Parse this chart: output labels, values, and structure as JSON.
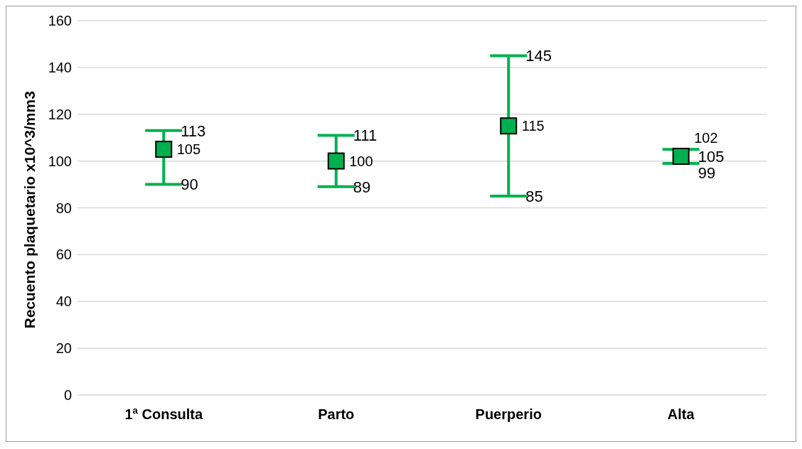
{
  "chart_data": {
    "type": "scatter",
    "ylabel": "Recuento plaquetario x10^3/mm3",
    "categories": [
      "1ª Consulta",
      "Parto",
      "Puerperio",
      "Alta"
    ],
    "series": [
      {
        "color": "#00b050",
        "values": [
          105,
          100,
          115,
          102
        ],
        "errors": [
          [
            90,
            113
          ],
          [
            89,
            111
          ],
          [
            85,
            145
          ],
          [
            99,
            105
          ]
        ],
        "value_labels": [
          "105",
          "100",
          "115",
          "102"
        ]
      }
    ],
    "annotations": [
      {
        "text": "113",
        "x": "1ª Consulta",
        "y": 113
      },
      {
        "text": "90",
        "x": "1ª Consulta",
        "y": 90
      },
      {
        "text": "111",
        "x": "Parto",
        "y": 111
      },
      {
        "text": "89",
        "x": "Parto",
        "y": 89
      },
      {
        "text": "145",
        "x": "Puerperio",
        "y": 145
      },
      {
        "text": "85",
        "x": "Puerperio",
        "y": 85
      },
      {
        "text": "105",
        "x": "Alta",
        "y": 105
      },
      {
        "text": "99",
        "x": "Alta",
        "y": 99
      }
    ],
    "ylim": [
      0,
      160
    ],
    "yticks": [
      0,
      20,
      40,
      60,
      80,
      100,
      120,
      140,
      160
    ],
    "grid": "y",
    "marker": "square",
    "legend": false
  }
}
